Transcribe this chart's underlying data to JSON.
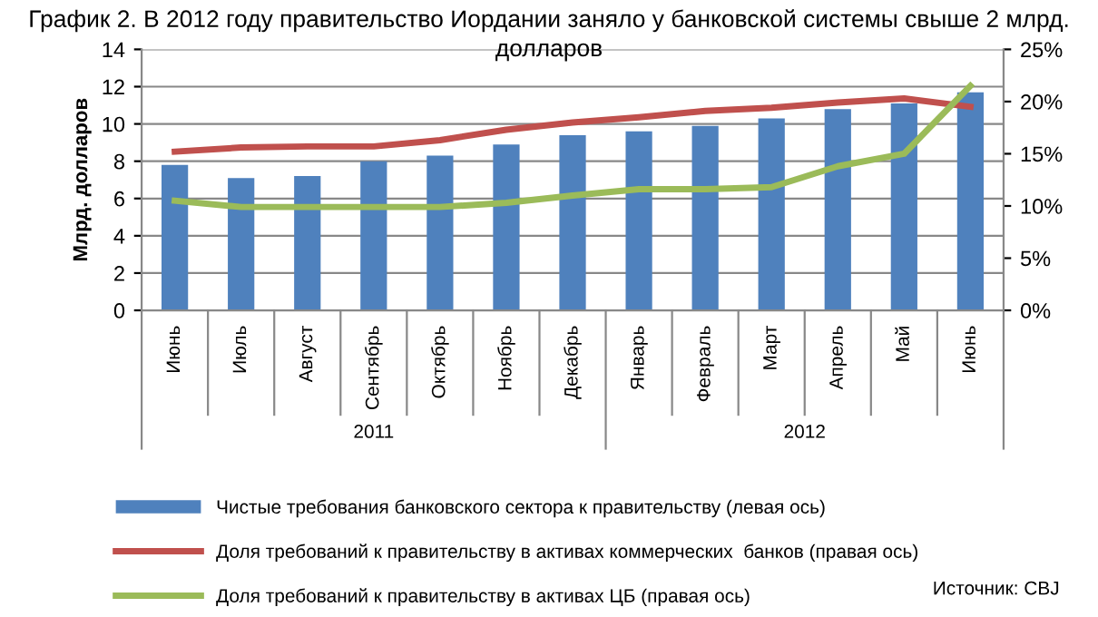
{
  "chart_data": {
    "type": "bar",
    "title": "График 2. В 2012 году правительство Иордании заняло у банковской системы свыше 2 млрд. долларов",
    "ylabel": "Млрд. долларов",
    "categories": [
      "Июнь",
      "Июль",
      "Август",
      "Сентябрь",
      "Октябрь",
      "Ноябрь",
      "Декабрь",
      "Январь",
      "Февраль",
      "Март",
      "Апрель",
      "Май",
      "Июнь"
    ],
    "series": [
      {
        "name": "Чистые требования банковского сектора к правительству (левая ось)",
        "color": "#4f81bd",
        "values": [
          7.8,
          7.1,
          7.2,
          8.0,
          8.3,
          8.9,
          9.4,
          9.6,
          9.9,
          10.3,
          10.8,
          11.1,
          11.7
        ]
      },
      {
        "name": "Доля требований к правительству в активах коммерческих  банков (правая ось)",
        "color": "#c0504d",
        "type": "line",
        "axis": "y2",
        "values": [
          15.2,
          15.6,
          15.7,
          15.7,
          16.3,
          17.3,
          18.0,
          18.5,
          19.1,
          19.4,
          19.9,
          20.3,
          19.5
        ]
      },
      {
        "name": "Доля требований к правительству в активах ЦБ (правая ось)",
        "color": "#9bbb59",
        "type": "line",
        "axis": "y2",
        "values": [
          10.5,
          9.9,
          9.9,
          9.9,
          9.9,
          10.3,
          11.0,
          11.6,
          11.6,
          11.8,
          13.8,
          15.0,
          21.5
        ]
      }
    ],
    "ylim": [
      0,
      14
    ],
    "yticks": [
      0,
      2,
      4,
      6,
      8,
      10,
      12,
      14
    ],
    "y2lim": [
      0,
      25
    ],
    "y2ticks": [
      {
        "value": 0,
        "label": "0%"
      },
      {
        "value": 5,
        "label": "5%"
      },
      {
        "value": 10,
        "label": "10%"
      },
      {
        "value": 15,
        "label": "15%"
      },
      {
        "value": 20,
        "label": "20%"
      },
      {
        "value": 25,
        "label": "25%"
      }
    ],
    "grid": "y",
    "legend": "bottom",
    "marker": "none",
    "line_style": "solid",
    "annotations": [
      "2011",
      "2012",
      "Источник: CBJ"
    ]
  }
}
